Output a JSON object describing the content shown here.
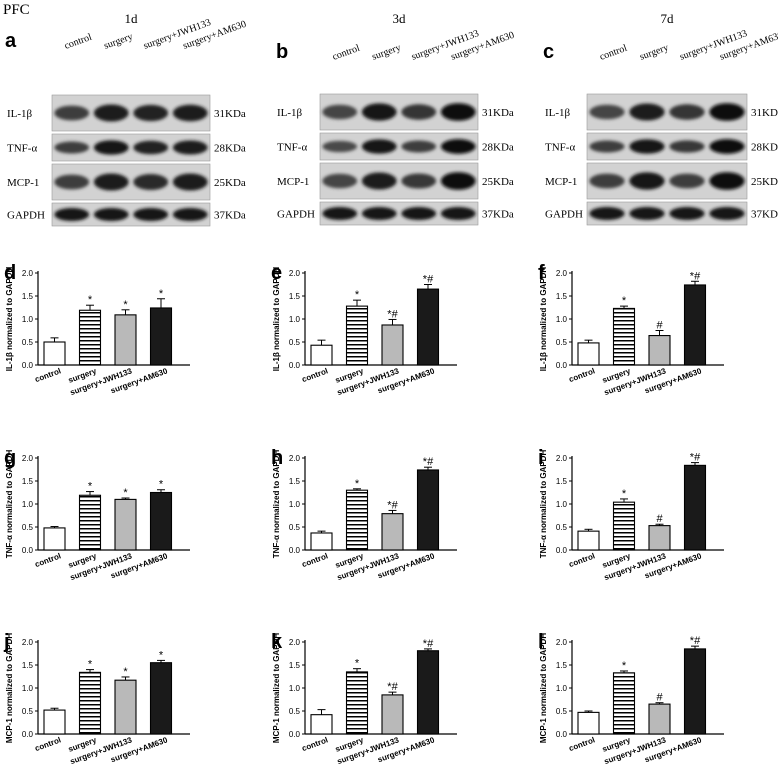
{
  "header": "PFC",
  "timepoints": [
    "1d",
    "3d",
    "7d"
  ],
  "blot_letters": [
    "a",
    "b",
    "c"
  ],
  "lanes": [
    "control",
    "surgery",
    "surgery+JWH133",
    "surgery+AM630"
  ],
  "proteins": [
    {
      "name": "IL-1β",
      "weight": "31KDa"
    },
    {
      "name": "TNF-α",
      "weight": "28KDa"
    },
    {
      "name": "MCP-1",
      "weight": "25KDa"
    },
    {
      "name": "GAPDH",
      "weight": "37KDa"
    }
  ],
  "chart_data": [
    {
      "panel": "d",
      "type": "bar",
      "categories": [
        "control",
        "surgery",
        "surgery+JWH133",
        "surgery+AM630"
      ],
      "values": [
        0.5,
        1.19,
        1.09,
        1.24
      ],
      "errors": [
        0.09,
        0.11,
        0.11,
        0.2
      ],
      "marks": [
        "",
        "*",
        "*",
        "*"
      ],
      "ylabel": "IL-1β normalized to GAPDH",
      "ylim": [
        0,
        2.0
      ],
      "yticks": [
        "0.0",
        "0.5",
        "1.0",
        "1.5",
        "2.0"
      ]
    },
    {
      "panel": "e",
      "type": "bar",
      "categories": [
        "control",
        "surgery",
        "surgery+JWH133",
        "surgery+AM630"
      ],
      "values": [
        0.43,
        1.28,
        0.87,
        1.65
      ],
      "errors": [
        0.11,
        0.13,
        0.12,
        0.1
      ],
      "marks": [
        "",
        "*",
        "*#",
        "*#"
      ],
      "ylabel": "IL-1β normalized to GAPDH",
      "ylim": [
        0,
        2.0
      ],
      "yticks": [
        "0.0",
        "0.5",
        "1.0",
        "1.5",
        "2.0"
      ]
    },
    {
      "panel": "f",
      "type": "bar",
      "categories": [
        "control",
        "surgery",
        "surgery+JWH133",
        "surgery+AM630"
      ],
      "values": [
        0.48,
        1.23,
        0.64,
        1.74
      ],
      "errors": [
        0.06,
        0.05,
        0.11,
        0.08
      ],
      "marks": [
        "",
        "*",
        "#",
        "*#"
      ],
      "ylabel": "IL-1β normalized to GAPDH",
      "ylim": [
        0,
        2.0
      ],
      "yticks": [
        "0.0",
        "0.5",
        "1.0",
        "1.5",
        "2.0"
      ]
    },
    {
      "panel": "g",
      "type": "bar",
      "categories": [
        "control",
        "surgery",
        "surgery+JWH133",
        "surgery+AM630"
      ],
      "values": [
        0.48,
        1.19,
        1.1,
        1.25
      ],
      "errors": [
        0.03,
        0.08,
        0.03,
        0.06
      ],
      "marks": [
        "",
        "*",
        "*",
        "*"
      ],
      "ylabel": "TNF-α normalized to GAPDH",
      "ylim": [
        0,
        2.0
      ],
      "yticks": [
        "0.0",
        "0.5",
        "1.0",
        "1.5",
        "2.0"
      ]
    },
    {
      "panel": "h",
      "type": "bar",
      "categories": [
        "control",
        "surgery",
        "surgery+JWH133",
        "surgery+AM630"
      ],
      "values": [
        0.37,
        1.3,
        0.79,
        1.74
      ],
      "errors": [
        0.04,
        0.03,
        0.07,
        0.06
      ],
      "marks": [
        "",
        "*",
        "*#",
        "*#"
      ],
      "ylabel": "TNF-α normalized to GAPDH",
      "ylim": [
        0,
        2.0
      ],
      "yticks": [
        "0.0",
        "0.5",
        "1.0",
        "1.5",
        "2.0"
      ]
    },
    {
      "panel": "i",
      "type": "bar",
      "categories": [
        "control",
        "surgery",
        "surgery+JWH133",
        "surgery+AM630"
      ],
      "values": [
        0.41,
        1.04,
        0.53,
        1.84
      ],
      "errors": [
        0.04,
        0.07,
        0.03,
        0.06
      ],
      "marks": [
        "",
        "*",
        "#",
        "*#"
      ],
      "ylabel": "TNF-α normalized to GAPDH",
      "ylim": [
        0,
        2.0
      ],
      "yticks": [
        "0.0",
        "0.5",
        "1.0",
        "1.5",
        "2.0"
      ]
    },
    {
      "panel": "j",
      "type": "bar",
      "categories": [
        "control",
        "surgery",
        "surgery+JWH133",
        "surgery+AM630"
      ],
      "values": [
        0.52,
        1.34,
        1.17,
        1.55
      ],
      "errors": [
        0.04,
        0.06,
        0.07,
        0.05
      ],
      "marks": [
        "",
        "*",
        "*",
        "*"
      ],
      "ylabel": "MCP-1 normalized to GAPDH",
      "ylim": [
        0,
        2.0
      ],
      "yticks": [
        "0.0",
        "0.5",
        "1.0",
        "1.5",
        "2.0"
      ]
    },
    {
      "panel": "k",
      "type": "bar",
      "categories": [
        "control",
        "surgery",
        "surgery+JWH133",
        "surgery+AM630"
      ],
      "values": [
        0.42,
        1.35,
        0.85,
        1.81
      ],
      "errors": [
        0.11,
        0.07,
        0.06,
        0.04
      ],
      "marks": [
        "",
        "*",
        "*#",
        "*#"
      ],
      "ylabel": "MCP-1 normalized to GAPDH",
      "ylim": [
        0,
        2.0
      ],
      "yticks": [
        "0.0",
        "0.5",
        "1.0",
        "1.5",
        "2.0"
      ]
    },
    {
      "panel": "l",
      "type": "bar",
      "categories": [
        "control",
        "surgery",
        "surgery+JWH133",
        "surgery+AM630"
      ],
      "values": [
        0.47,
        1.33,
        0.65,
        1.85
      ],
      "errors": [
        0.03,
        0.04,
        0.03,
        0.06
      ],
      "marks": [
        "",
        "*",
        "#",
        "*#"
      ],
      "ylabel": "MCP-1 normalized to GAPDH",
      "ylim": [
        0,
        2.0
      ],
      "yticks": [
        "0.0",
        "0.5",
        "1.0",
        "1.5",
        "2.0"
      ]
    }
  ]
}
